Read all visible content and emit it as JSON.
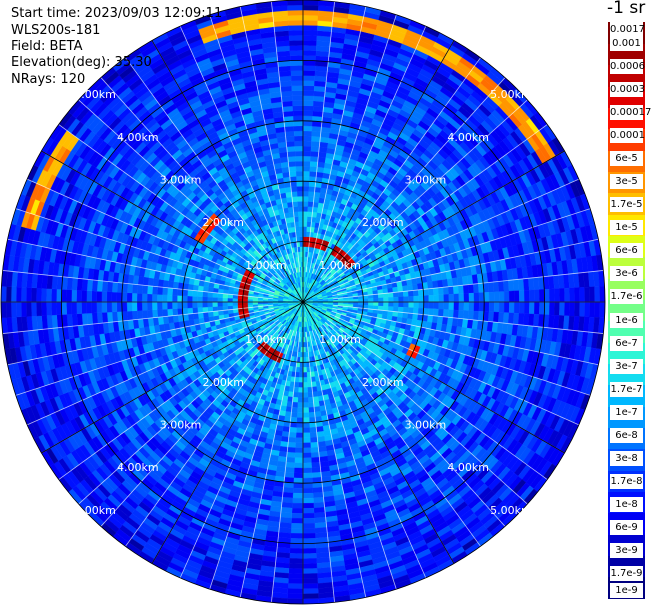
{
  "header": {
    "start_time": "Start time: 2023/09/03 12:09:11",
    "instrument": "WLS200s-181",
    "field": "Field: BETA",
    "elevation": "Elevation(deg): 35.30",
    "nrays": "NRays: 120"
  },
  "colorbar": {
    "unit_label": "-1 sr",
    "colors": [
      "#000080",
      "#0000a6",
      "#0000d0",
      "#0000f5",
      "#0010ff",
      "#0030ff",
      "#0050ff",
      "#0074ff",
      "#0098ff",
      "#00b8ff",
      "#14dcf0",
      "#2cf5d6",
      "#50ffb0",
      "#74ff88",
      "#98ff60",
      "#bcff3c",
      "#deff18",
      "#ffe800",
      "#ffbe00",
      "#ff9600",
      "#ff6e00",
      "#ff3c00",
      "#ff1000",
      "#e00000",
      "#c00000",
      "#a00000",
      "#800000"
    ],
    "ticks": [
      "1e-9",
      "1.7e-9",
      "3e-9",
      "6e-9",
      "1e-8",
      "1.7e-8",
      "3e-8",
      "6e-8",
      "1e-7",
      "1.7e-7",
      "3e-7",
      "6e-7",
      "1e-6",
      "1.7e-6",
      "3e-6",
      "6e-6",
      "1e-5",
      "1.7e-5",
      "3e-5",
      "6e-5",
      "0.0001",
      "0.00017",
      "0.0003",
      "0.0006",
      "0.001",
      "0.0017"
    ]
  },
  "chart_data": {
    "type": "heatmap",
    "projection": "polar",
    "variable": "BETA",
    "n_rays": 120,
    "range_rings_km": [
      1,
      2,
      3,
      4,
      5
    ],
    "ring_labels": [
      "1.00km",
      "2.00km",
      "3.00km",
      "4.00km",
      "5.00km"
    ],
    "max_range_km": 5.0,
    "value_range": [
      1e-09,
      0.0017
    ],
    "features": [
      {
        "description": "aerosol band",
        "range_km": 1.0,
        "value": 0.0006,
        "azimuth_sectors_deg": [
          [
            -75,
            -60
          ],
          [
            0,
            25
          ],
          [
            30,
            55
          ],
          [
            200,
            225
          ],
          [
            255,
            265
          ],
          [
            265,
            285
          ]
        ]
      },
      {
        "description": "cloud arc",
        "range_km": 4.7,
        "value": 3e-05,
        "azimuth_sectors_deg": [
          [
            -20,
            40
          ],
          [
            40,
            60
          ],
          [
            -75,
            -55
          ]
        ]
      },
      {
        "description": "scattered high returns",
        "range_km": 2.0,
        "value": 0.0001,
        "azimuth_sectors_deg": [
          [
            300,
            315
          ],
          [
            110,
            118
          ]
        ]
      }
    ]
  }
}
